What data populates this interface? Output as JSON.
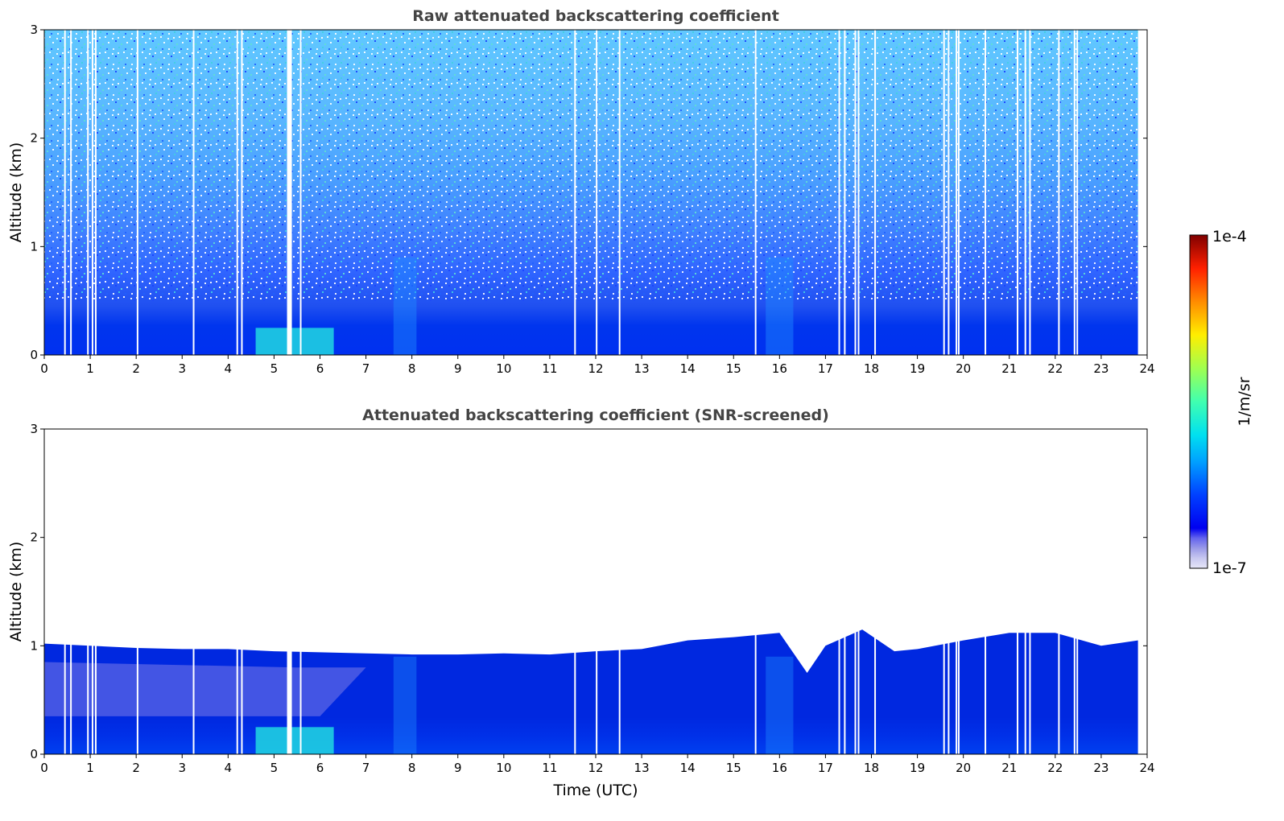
{
  "chart_data": [
    {
      "type": "heatmap",
      "title": "Raw attenuated backscattering coefficient",
      "xlabel": "",
      "ylabel": "Altitude (km)",
      "xlim": [
        0,
        24
      ],
      "ylim": [
        0,
        3
      ],
      "x_ticks": [
        "0",
        "1",
        "2",
        "3",
        "4",
        "5",
        "6",
        "7",
        "8",
        "9",
        "10",
        "11",
        "12",
        "13",
        "14",
        "15",
        "16",
        "17",
        "18",
        "19",
        "20",
        "21",
        "22",
        "23",
        "24"
      ],
      "y_ticks": [
        "0",
        "1",
        "2",
        "3"
      ],
      "screened": false,
      "data_gaps_utc": [
        0.45,
        0.58,
        0.95,
        1.05,
        1.12,
        2.03,
        3.25,
        4.2,
        4.3,
        5.3,
        5.58,
        11.55,
        12.02,
        12.52,
        15.48,
        17.3,
        17.42,
        17.65,
        17.72,
        18.08,
        19.58,
        19.68,
        19.85,
        19.9,
        20.48,
        21.18,
        21.35,
        21.45,
        22.08,
        22.42,
        22.48
      ],
      "features": [
        {
          "time": [
            4.6,
            6.3
          ],
          "altitude_max": 0.25,
          "level": "high"
        },
        {
          "time": [
            15.7,
            16.3
          ],
          "altitude_max": 0.9,
          "level": "elevated"
        },
        {
          "time": [
            7.6,
            8.1
          ],
          "altitude_max": 0.9,
          "level": "elevated"
        }
      ]
    },
    {
      "type": "heatmap",
      "title": "Attenuated backscattering coefficient (SNR-screened)",
      "xlabel": "Time (UTC)",
      "ylabel": "Altitude (km)",
      "xlim": [
        0,
        24
      ],
      "ylim": [
        0,
        3
      ],
      "x_ticks": [
        "0",
        "1",
        "2",
        "3",
        "4",
        "5",
        "6",
        "7",
        "8",
        "9",
        "10",
        "11",
        "12",
        "13",
        "14",
        "15",
        "16",
        "17",
        "18",
        "19",
        "20",
        "21",
        "22",
        "23",
        "24"
      ],
      "y_ticks": [
        "0",
        "1",
        "2",
        "3"
      ],
      "screened": true,
      "boundary_layer_top_km": [
        {
          "t": 0,
          "h": 1.02
        },
        {
          "t": 1,
          "h": 1.0
        },
        {
          "t": 2,
          "h": 0.98
        },
        {
          "t": 3,
          "h": 0.97
        },
        {
          "t": 4,
          "h": 0.97
        },
        {
          "t": 5,
          "h": 0.95
        },
        {
          "t": 6,
          "h": 0.94
        },
        {
          "t": 7,
          "h": 0.93
        },
        {
          "t": 8,
          "h": 0.92
        },
        {
          "t": 9,
          "h": 0.92
        },
        {
          "t": 10,
          "h": 0.93
        },
        {
          "t": 11,
          "h": 0.92
        },
        {
          "t": 12,
          "h": 0.95
        },
        {
          "t": 13,
          "h": 0.97
        },
        {
          "t": 14,
          "h": 1.05
        },
        {
          "t": 15,
          "h": 1.08
        },
        {
          "t": 16,
          "h": 1.12
        },
        {
          "t": 16.6,
          "h": 0.75
        },
        {
          "t": 17,
          "h": 1.0
        },
        {
          "t": 17.8,
          "h": 1.15
        },
        {
          "t": 18.5,
          "h": 0.95
        },
        {
          "t": 19,
          "h": 0.97
        },
        {
          "t": 20,
          "h": 1.05
        },
        {
          "t": 21,
          "h": 1.12
        },
        {
          "t": 22,
          "h": 1.12
        },
        {
          "t": 23,
          "h": 1.0
        },
        {
          "t": 23.8,
          "h": 1.05
        }
      ],
      "residual_layer_time": [
        0,
        7
      ],
      "residual_layer_altitude_km": [
        0.35,
        0.85
      ]
    }
  ],
  "colorbar": {
    "label": "1/m/sr",
    "max_label": "1e-4",
    "min_label": "1e-7",
    "scale": "log",
    "colormap": "jet"
  }
}
